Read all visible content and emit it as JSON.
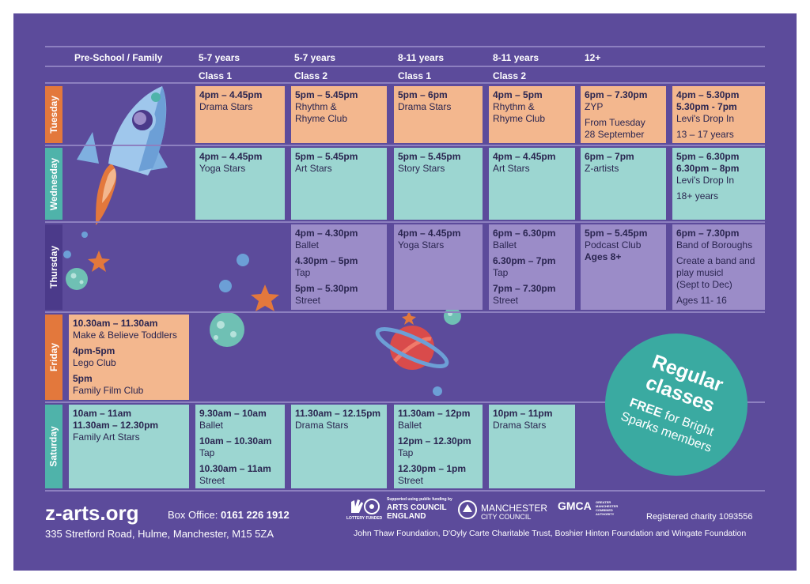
{
  "headers": {
    "row1": [
      "Pre-School / Family",
      "5-7 years",
      "5-7 years",
      "8-11 years",
      "8-11 years",
      "12+"
    ],
    "row2": [
      "Class 1",
      "Class 2",
      "Class 1",
      "Class 2"
    ]
  },
  "days": [
    "Tuesday",
    "Wednesday",
    "Thursday",
    "Friday",
    "Saturday"
  ],
  "cells": {
    "tue": {
      "c1": [
        {
          "t": "4pm – 4.45pm"
        },
        {
          "a": "Drama Stars"
        }
      ],
      "c2": [
        {
          "t": "5pm – 5.45pm"
        },
        {
          "a": "Rhythm &"
        },
        {
          "a": "Rhyme Club"
        }
      ],
      "c3": [
        {
          "t": "5pm – 6pm"
        },
        {
          "a": "Drama Stars"
        }
      ],
      "c4": [
        {
          "t": "4pm – 5pm"
        },
        {
          "a": "Rhythm &"
        },
        {
          "a": "Rhyme Club"
        }
      ],
      "c5": [
        {
          "t": "6pm – 7.30pm"
        },
        {
          "a": "ZYP"
        },
        {
          "g": "From Tuesday"
        },
        {
          "a": "28 September"
        }
      ],
      "c6": [
        {
          "t": "4pm – 5.30pm"
        },
        {
          "t": "5.30pm - 7pm"
        },
        {
          "a": "Levi's Drop In"
        },
        {
          "g": "13 – 17 years"
        }
      ]
    },
    "wed": {
      "c1": [
        {
          "t": "4pm – 4.45pm"
        },
        {
          "a": "Yoga Stars"
        }
      ],
      "c2": [
        {
          "t": "5pm – 5.45pm"
        },
        {
          "a": "Art Stars"
        }
      ],
      "c3": [
        {
          "t": "5pm – 5.45pm"
        },
        {
          "a": "Story Stars"
        }
      ],
      "c4": [
        {
          "t": "4pm – 4.45pm"
        },
        {
          "a": "Art Stars"
        }
      ],
      "c5": [
        {
          "t": "6pm – 7pm"
        },
        {
          "a": "Z-artists"
        }
      ],
      "c6": [
        {
          "t": "5pm – 6.30pm"
        },
        {
          "t": "6.30pm – 8pm"
        },
        {
          "a": "Levi's Drop In"
        },
        {
          "g": "18+ years"
        }
      ]
    },
    "thu": {
      "c2": [
        {
          "t": "4pm – 4.30pm"
        },
        {
          "a": "Ballet"
        },
        {
          "tg": "4.30pm – 5pm"
        },
        {
          "a": "Tap"
        },
        {
          "tg": "5pm – 5.30pm"
        },
        {
          "a": "Street"
        }
      ],
      "c3": [
        {
          "t": "4pm – 4.45pm"
        },
        {
          "a": "Yoga Stars"
        }
      ],
      "c4": [
        {
          "t": "6pm – 6.30pm"
        },
        {
          "a": "Ballet"
        },
        {
          "tg": "6.30pm – 7pm"
        },
        {
          "a": "Tap"
        },
        {
          "tg": "7pm – 7.30pm"
        },
        {
          "a": "Street"
        }
      ],
      "c5": [
        {
          "t": "5pm – 5.45pm"
        },
        {
          "a": "Podcast Club"
        },
        {
          "t": "Ages 8+"
        }
      ],
      "c6": [
        {
          "t": "6pm – 7.30pm"
        },
        {
          "a": "Band of Boroughs"
        },
        {
          "g": "Create a band and"
        },
        {
          "a": "play musicl"
        },
        {
          "a": "(Sept to Dec)"
        },
        {
          "g": "Ages 11- 16"
        }
      ]
    },
    "fri": {
      "c0": [
        {
          "t": "10.30am – 11.30am"
        },
        {
          "a": "Make & Believe Toddlers"
        },
        {
          "tg": "4pm-5pm"
        },
        {
          "a": "Lego Club"
        },
        {
          "tg": "5pm"
        },
        {
          "a": "Family Film Club"
        }
      ]
    },
    "sat": {
      "c0": [
        {
          "t": "10am – 11am"
        },
        {
          "t": "11.30am – 12.30pm"
        },
        {
          "a": "Family Art Stars"
        }
      ],
      "c1": [
        {
          "t": "9.30am – 10am"
        },
        {
          "a": "Ballet"
        },
        {
          "tg": "10am – 10.30am"
        },
        {
          "a": "Tap"
        },
        {
          "tg": "10.30am – 11am"
        },
        {
          "a": "Street"
        }
      ],
      "c2": [
        {
          "t": "11.30am – 12.15pm"
        },
        {
          "a": "Drama Stars"
        }
      ],
      "c3": [
        {
          "t": "11.30am – 12pm"
        },
        {
          "a": "Ballet"
        },
        {
          "tg": "12pm – 12.30pm"
        },
        {
          "a": "Tap"
        },
        {
          "tg": "12.30pm – 1pm"
        },
        {
          "a": "Street"
        }
      ],
      "c4": [
        {
          "t": "10pm – 11pm"
        },
        {
          "a": "Drama Stars"
        }
      ]
    }
  },
  "badge": {
    "line1": "Regular",
    "line2": "classes",
    "free": "FREE",
    "line3": "for Bright",
    "line4": "Sparks members"
  },
  "footer": {
    "site": "z-arts.org",
    "box_label": "Box Office:",
    "box_phone": "0161 226 1912",
    "address": "335 Stretford Road, Hulme, Manchester, M15 5ZA",
    "charity": "Registered charity 1093556",
    "funders": "John Thaw Foundation, D'Oyly Carte Charitable Trust, Boshier Hinton Foundation and Wingate Foundation",
    "logo_ace_small": "Supported using public funding by",
    "logo_ace_1": "ARTS COUNCIL",
    "logo_ace_2": "ENGLAND",
    "logo_lottery": "LOTTERY FUNDED",
    "logo_mcc_1": "MANCHESTER",
    "logo_mcc_2": "CITY COUNCIL",
    "logo_gmca": "GMCA",
    "logo_gmca_small": "GREATER MANCHESTER COMBINED AUTHORITY"
  },
  "colors": {
    "background": "#5c4b9b",
    "orange": "#f3b78e",
    "teal": "#9cd6d1",
    "lavender": "#9b8cc8"
  }
}
